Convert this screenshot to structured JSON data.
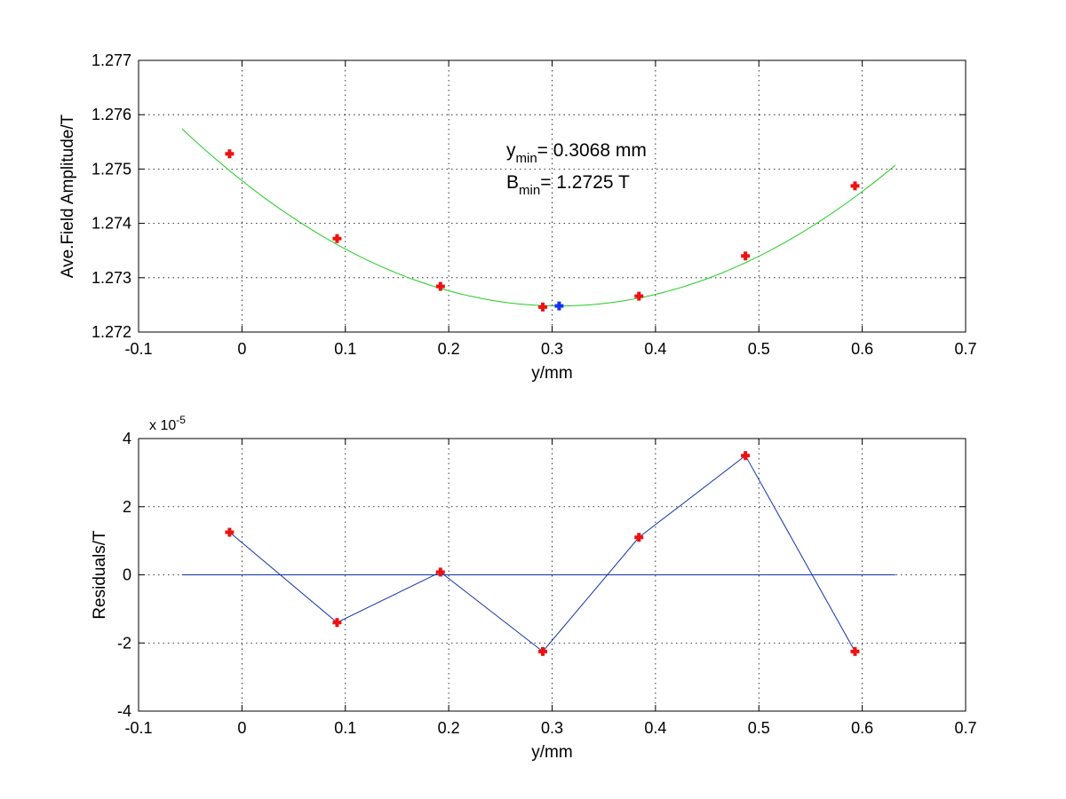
{
  "chart_data": [
    {
      "type": "line",
      "xlabel": "y/mm",
      "ylabel": "Ave.Field Amplitude/T",
      "xlim": [
        -0.1,
        0.7
      ],
      "ylim": [
        1.272,
        1.277
      ],
      "xticks": [
        "-0.1",
        "0",
        "0.1",
        "0.2",
        "0.3",
        "0.4",
        "0.5",
        "0.6",
        "0.7"
      ],
      "yticks": [
        "1.272",
        "1.273",
        "1.274",
        "1.275",
        "1.276",
        "1.277"
      ],
      "grid": true,
      "fit_curve": {
        "color": "#22cc22",
        "x_range": [
          -0.058,
          0.632
        ],
        "vertex_x": 0.3068,
        "vertex_y": 1.27248,
        "curvature": 0.0245
      },
      "measured": {
        "color": "#ee1111",
        "marker": "plus",
        "x": [
          -0.012,
          0.092,
          0.192,
          0.291,
          0.384,
          0.487,
          0.593
        ],
        "y": [
          1.27528,
          1.27372,
          1.27284,
          1.27246,
          1.27266,
          1.2734,
          1.27469
        ]
      },
      "minimum_point": {
        "color": "#1133ee",
        "marker": "plus",
        "x": 0.3068,
        "y": 1.27248
      },
      "annotation": {
        "line1": {
          "var": "y",
          "sub": "min",
          "text": "= 0.3068 mm"
        },
        "line2": {
          "var": "B",
          "sub": "min",
          "text": "= 1.2725 T"
        }
      }
    },
    {
      "type": "line",
      "xlabel": "y/mm",
      "ylabel": "Residuals/T",
      "xlim": [
        -0.1,
        0.7
      ],
      "ylim": [
        -4,
        4
      ],
      "xticks": [
        "-0.1",
        "0",
        "0.1",
        "0.2",
        "0.3",
        "0.4",
        "0.5",
        "0.6",
        "0.7"
      ],
      "yticks": [
        "-4",
        "-2",
        "0",
        "2",
        "4"
      ],
      "y_multiplier": {
        "base": "x 10",
        "exp": "-5"
      },
      "grid": true,
      "zero_line": {
        "color": "#1133aa",
        "x_range": [
          -0.058,
          0.632
        ]
      },
      "residuals": {
        "line_color": "#1133aa",
        "marker_color": "#ee1111",
        "marker": "plus",
        "x": [
          -0.012,
          0.092,
          0.192,
          0.291,
          0.384,
          0.487,
          0.593
        ],
        "y": [
          1.25,
          -1.4,
          0.08,
          -2.25,
          1.1,
          3.5,
          -2.25
        ]
      }
    }
  ]
}
